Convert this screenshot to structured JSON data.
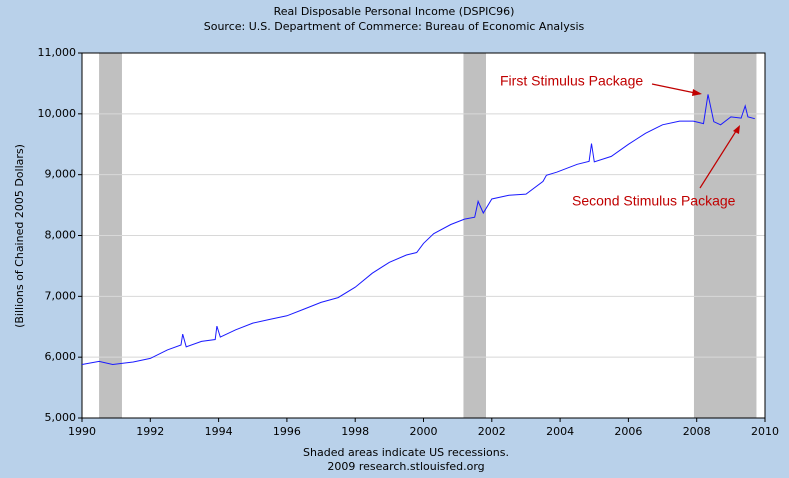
{
  "chart_data": {
    "type": "line",
    "title": "Real Disposable Personal Income (DSPIC96)",
    "subtitle": "Source: U.S. Department of Commerce: Bureau of Economic Analysis",
    "y_label": "(Billions of Chained 2005 Dollars)",
    "footer": [
      "Shaded areas indicate US recessions.",
      "2009 research.stlouisfed.org"
    ],
    "annotations": [
      "First Stimulus Package",
      "Second Stimulus Package"
    ],
    "recessions": [
      [
        1990.5,
        1991.17
      ],
      [
        2001.17,
        2001.83
      ],
      [
        2007.92,
        2009.75
      ]
    ],
    "xlim": [
      1990,
      2010
    ],
    "xticks": [
      1990,
      1992,
      1994,
      1996,
      1998,
      2000,
      2002,
      2004,
      2006,
      2008,
      2010
    ],
    "ylim": [
      5000,
      11000
    ],
    "yticks": [
      {
        "value": 5000,
        "label": "5,000"
      },
      {
        "value": 6000,
        "label": "6,000"
      },
      {
        "value": 7000,
        "label": "7,000"
      },
      {
        "value": 8000,
        "label": "8,000"
      },
      {
        "value": 9000,
        "label": "9,000"
      },
      {
        "value": 10000,
        "label": "10,000"
      },
      {
        "value": 11000,
        "label": "11,000"
      }
    ],
    "grid": true,
    "series": [
      {
        "name": "DSPIC96",
        "color": "#1a1aff",
        "x": [
          1990.0,
          1990.5,
          1990.9,
          1991.5,
          1992.0,
          1992.5,
          1992.9,
          1992.95,
          1993.05,
          1993.5,
          1993.9,
          1993.95,
          1994.05,
          1994.5,
          1995.0,
          1995.5,
          1996.0,
          1996.5,
          1997.0,
          1997.5,
          1998.0,
          1998.5,
          1999.0,
          1999.5,
          1999.8,
          2000.0,
          2000.3,
          2000.8,
          2001.2,
          2001.5,
          2001.6,
          2001.75,
          2002.0,
          2002.5,
          2003.0,
          2003.5,
          2003.6,
          2003.9,
          2004.5,
          2004.85,
          2004.92,
          2005.0,
          2005.5,
          2006.0,
          2006.5,
          2007.0,
          2007.5,
          2007.9,
          2008.2,
          2008.33,
          2008.5,
          2008.7,
          2009.0,
          2009.3,
          2009.42,
          2009.5,
          2009.7
        ],
        "values": [
          5880,
          5930,
          5880,
          5920,
          5980,
          6120,
          6200,
          6380,
          6170,
          6260,
          6290,
          6510,
          6330,
          6450,
          6560,
          6620,
          6680,
          6790,
          6900,
          6980,
          7150,
          7380,
          7560,
          7680,
          7720,
          7870,
          8030,
          8180,
          8270,
          8300,
          8560,
          8370,
          8600,
          8660,
          8680,
          8890,
          8990,
          9040,
          9170,
          9220,
          9510,
          9210,
          9300,
          9500,
          9680,
          9820,
          9880,
          9880,
          9840,
          10320,
          9870,
          9820,
          9950,
          9930,
          10130,
          9950,
          9920
        ]
      }
    ]
  }
}
